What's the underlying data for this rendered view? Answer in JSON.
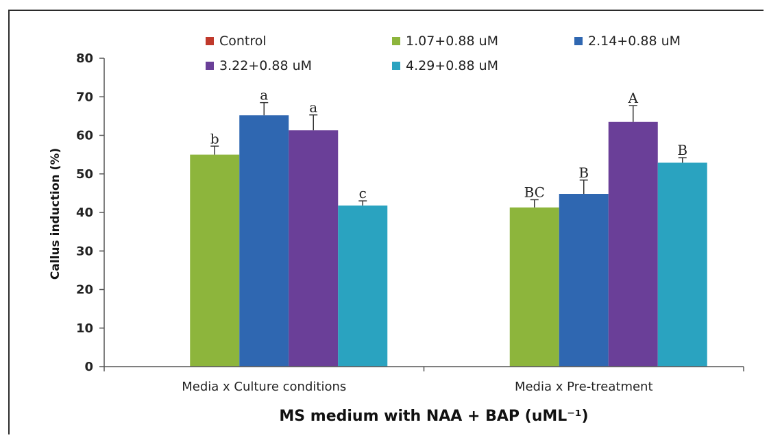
{
  "chart_data": {
    "type": "bar",
    "xlabel": "MS medium with NAA + BAP (uML⁻¹)",
    "ylabel": "Callus induction (%)",
    "ylim": [
      0,
      80
    ],
    "yticks": [
      "0",
      "10",
      "20",
      "30",
      "40",
      "50",
      "60",
      "70",
      "80"
    ],
    "categories": [
      "Media x Culture conditions",
      "Media x Pre-treatment"
    ],
    "legend_position": "top",
    "series": [
      {
        "name": "Control",
        "color": "#c0392b",
        "values": [
          0,
          0
        ],
        "errors": [
          0,
          0
        ],
        "labels": [
          "",
          ""
        ]
      },
      {
        "name": "1.07+0.88 uM",
        "color": "#8db53c",
        "values": [
          55,
          41.3
        ],
        "errors": [
          2.2,
          2.0
        ],
        "labels": [
          "b",
          "BC"
        ]
      },
      {
        "name": "2.14+0.88 uM",
        "color": "#2f67b1",
        "values": [
          65.2,
          44.8
        ],
        "errors": [
          3.3,
          3.6
        ],
        "labels": [
          "a",
          "B"
        ]
      },
      {
        "name": "3.22+0.88 uM",
        "color": "#6a3f98",
        "values": [
          61.3,
          63.5
        ],
        "errors": [
          4.0,
          4.2
        ],
        "labels": [
          "a",
          "A"
        ]
      },
      {
        "name": "4.29+0.88 uM",
        "color": "#2aa3c0",
        "values": [
          41.8,
          52.9
        ],
        "errors": [
          1.2,
          1.3
        ],
        "labels": [
          "c",
          "B"
        ]
      }
    ]
  }
}
